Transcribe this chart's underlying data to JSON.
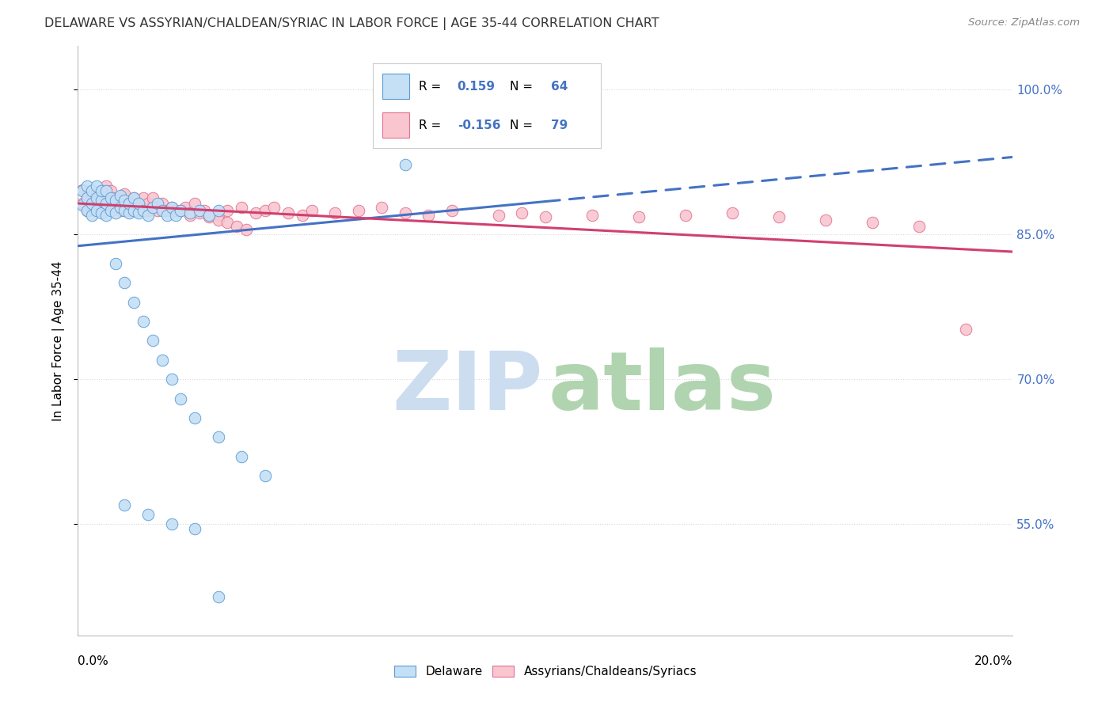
{
  "title": "DELAWARE VS ASSYRIAN/CHALDEAN/SYRIAC IN LABOR FORCE | AGE 35-44 CORRELATION CHART",
  "source": "Source: ZipAtlas.com",
  "ylabel": "In Labor Force | Age 35-44",
  "ytick_vals": [
    0.55,
    0.7,
    0.85,
    1.0
  ],
  "ytick_labels": [
    "55.0%",
    "70.0%",
    "85.0%",
    "100.0%"
  ],
  "xmin": 0.0,
  "xmax": 0.2,
  "ymin": 0.435,
  "ymax": 1.045,
  "blue_R": 0.159,
  "blue_N": 64,
  "pink_R": -0.156,
  "pink_N": 79,
  "blue_fill": "#c5dff5",
  "blue_edge": "#5b9bd5",
  "pink_fill": "#f9c6d0",
  "pink_edge": "#e07090",
  "blue_line_color": "#4472c4",
  "pink_line_color": "#d04070",
  "tick_label_color": "#4472c4",
  "legend_blue": "Delaware",
  "legend_pink": "Assyrians/Chaldeans/Syriacs",
  "grid_color": "#d8d8d8",
  "title_color": "#333333",
  "source_color": "#888888",
  "watermark_zip": "#ccddf0",
  "watermark_atlas": "#b0d4b0"
}
